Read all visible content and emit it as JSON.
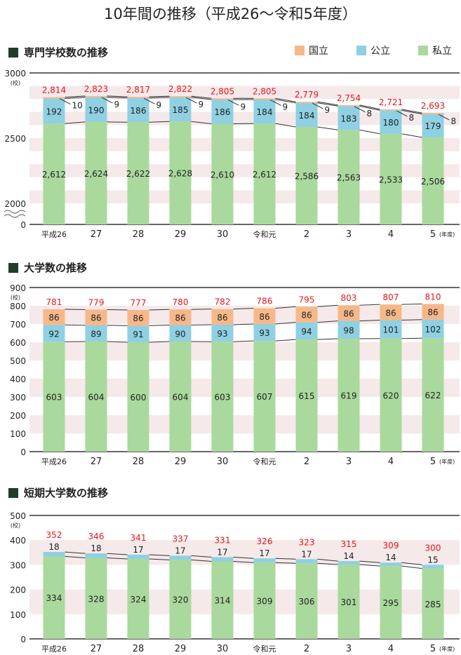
{
  "title": "10年間の推移（平成26～令和5年度）",
  "legend": [
    {
      "label": "国立",
      "color": "#f6b889"
    },
    {
      "label": "公立",
      "color": "#8fd0e2"
    },
    {
      "label": "私立",
      "color": "#a9d99c"
    }
  ],
  "chart_data": [
    {
      "type": "bar",
      "stacked": true,
      "title": "専門学校数の推移",
      "unit": "(校)",
      "x_suffix": "(年度)",
      "categories": [
        "平成26",
        "27",
        "28",
        "29",
        "30",
        "令和元",
        "2",
        "3",
        "4",
        "5"
      ],
      "yticks": [
        "0",
        "2000",
        "2500",
        "3000"
      ],
      "ylim": [
        0,
        3000
      ],
      "axis_break": [
        0,
        2000
      ],
      "grid_bands": [
        [
          2800,
          2900
        ],
        [
          2600,
          2700
        ],
        [
          2400,
          2500
        ],
        [
          2200,
          2300
        ],
        [
          2000,
          2100
        ]
      ],
      "series": [
        {
          "name": "私立",
          "values": [
            2612,
            2624,
            2622,
            2628,
            2610,
            2612,
            2586,
            2563,
            2533,
            2506
          ],
          "labels": [
            "2,612",
            "2,624",
            "2,622",
            "2,628",
            "2,610",
            "2,612",
            "2,586",
            "2,563",
            "2,533",
            "2,506"
          ]
        },
        {
          "name": "公立",
          "values": [
            192,
            190,
            186,
            185,
            186,
            184,
            184,
            183,
            180,
            179
          ],
          "labels": [
            "192",
            "190",
            "186",
            "185",
            "186",
            "184",
            "184",
            "183",
            "180",
            "179"
          ]
        },
        {
          "name": "国立",
          "values": [
            10,
            9,
            9,
            9,
            9,
            9,
            9,
            8,
            8,
            8
          ],
          "labels": [
            "10",
            "9",
            "9",
            "9",
            "9",
            "9",
            "9",
            "8",
            "8",
            "8"
          ]
        }
      ],
      "totals": [
        "2,814",
        "2,823",
        "2,817",
        "2,822",
        "2,805",
        "2,805",
        "2,779",
        "2,754",
        "2,721",
        "2,693"
      ]
    },
    {
      "type": "bar",
      "stacked": true,
      "title": "大学数の推移",
      "unit": "(校)",
      "x_suffix": "(年度)",
      "categories": [
        "平成26",
        "27",
        "28",
        "29",
        "30",
        "令和元",
        "2",
        "3",
        "4",
        "5"
      ],
      "yticks": [
        "0",
        "100",
        "200",
        "300",
        "400",
        "500",
        "600",
        "700",
        "800",
        "900"
      ],
      "ylim": [
        0,
        900
      ],
      "grid_bands": [
        [
          700,
          800
        ],
        [
          500,
          600
        ],
        [
          300,
          400
        ],
        [
          100,
          200
        ]
      ],
      "series": [
        {
          "name": "私立",
          "values": [
            603,
            604,
            600,
            604,
            603,
            607,
            615,
            619,
            620,
            622
          ],
          "labels": [
            "603",
            "604",
            "600",
            "604",
            "603",
            "607",
            "615",
            "619",
            "620",
            "622"
          ]
        },
        {
          "name": "公立",
          "values": [
            92,
            89,
            91,
            90,
            93,
            93,
            94,
            98,
            101,
            102
          ],
          "labels": [
            "92",
            "89",
            "91",
            "90",
            "93",
            "93",
            "94",
            "98",
            "101",
            "102"
          ]
        },
        {
          "name": "国立",
          "values": [
            86,
            86,
            86,
            86,
            86,
            86,
            86,
            86,
            86,
            86
          ],
          "labels": [
            "86",
            "86",
            "86",
            "86",
            "86",
            "86",
            "86",
            "86",
            "86",
            "86"
          ]
        }
      ],
      "totals": [
        "781",
        "779",
        "777",
        "780",
        "782",
        "786",
        "795",
        "803",
        "807",
        "810"
      ]
    },
    {
      "type": "bar",
      "stacked": true,
      "title": "短期大学数の推移",
      "unit": "(校)",
      "x_suffix": "(年度)",
      "categories": [
        "平成26",
        "27",
        "28",
        "29",
        "30",
        "令和元",
        "2",
        "3",
        "4",
        "5"
      ],
      "yticks": [
        "0",
        "100",
        "200",
        "300",
        "400",
        "500"
      ],
      "ylim": [
        0,
        500
      ],
      "grid_bands": [
        [
          300,
          400
        ],
        [
          100,
          200
        ]
      ],
      "series": [
        {
          "name": "私立",
          "values": [
            334,
            328,
            324,
            320,
            314,
            309,
            306,
            301,
            295,
            285
          ],
          "labels": [
            "334",
            "328",
            "324",
            "320",
            "314",
            "309",
            "306",
            "301",
            "295",
            "285"
          ]
        },
        {
          "name": "公立",
          "values": [
            18,
            18,
            17,
            17,
            17,
            17,
            17,
            14,
            14,
            15
          ],
          "labels": [
            "18",
            "18",
            "17",
            "17",
            "17",
            "17",
            "17",
            "14",
            "14",
            "15"
          ]
        }
      ],
      "totals": [
        "352",
        "346",
        "341",
        "337",
        "331",
        "326",
        "323",
        "315",
        "309",
        "300"
      ]
    }
  ]
}
